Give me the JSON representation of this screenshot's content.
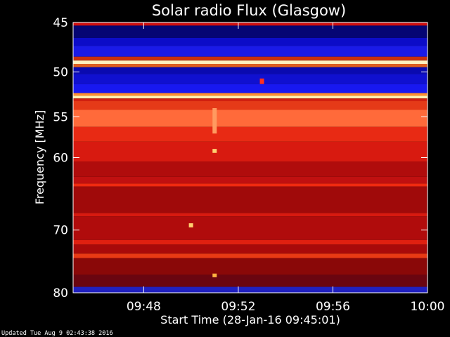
{
  "chart_data": {
    "type": "heatmap",
    "title": "Solar radio Flux (Glasgow)",
    "xlabel": "Start Time (28-Jan-16 09:45:01)",
    "ylabel": "Frequency [MHz]",
    "x_ticks": [
      "09:48",
      "09:52",
      "09:56",
      "10:00"
    ],
    "y_ticks": [
      "45",
      "50",
      "55",
      "60",
      "70",
      "80"
    ],
    "xlim": [
      "09:45:01",
      "10:00:00"
    ],
    "ylim_mhz": [
      45,
      80
    ],
    "y_scale": "log",
    "colormap": "blue-black-red-yellow-white",
    "bands": [
      {
        "from": 45.0,
        "to": 45.3,
        "color": "#d01010"
      },
      {
        "from": 45.3,
        "to": 46.5,
        "color": "#050573"
      },
      {
        "from": 46.5,
        "to": 47.3,
        "color": "#0c0cc8"
      },
      {
        "from": 47.3,
        "to": 48.4,
        "color": "#1a1ae8"
      },
      {
        "from": 48.4,
        "to": 48.8,
        "color": "#c83010"
      },
      {
        "from": 48.8,
        "to": 49.15,
        "color": "#fff2c0"
      },
      {
        "from": 49.15,
        "to": 49.5,
        "color": "#e06020"
      },
      {
        "from": 49.5,
        "to": 50.2,
        "color": "#0a0ab0"
      },
      {
        "from": 50.2,
        "to": 51.3,
        "color": "#1010d0"
      },
      {
        "from": 51.3,
        "to": 52.3,
        "color": "#1818f0"
      },
      {
        "from": 52.3,
        "to": 52.6,
        "color": "#ff9030"
      },
      {
        "from": 52.6,
        "to": 52.9,
        "color": "#fff0b0"
      },
      {
        "from": 52.9,
        "to": 53.2,
        "color": "#d02010"
      },
      {
        "from": 53.2,
        "to": 54.2,
        "color": "#e53a18"
      },
      {
        "from": 54.2,
        "to": 56.2,
        "color": "#ff6a3a"
      },
      {
        "from": 56.2,
        "to": 58.0,
        "color": "#e82a14"
      },
      {
        "from": 58.0,
        "to": 60.5,
        "color": "#d81a10"
      },
      {
        "from": 60.5,
        "to": 62.5,
        "color": "#b00c0c"
      },
      {
        "from": 62.5,
        "to": 63.4,
        "color": "#c01010"
      },
      {
        "from": 63.4,
        "to": 63.8,
        "color": "#f02a10"
      },
      {
        "from": 63.8,
        "to": 67.5,
        "color": "#a00a0a"
      },
      {
        "from": 67.5,
        "to": 68.0,
        "color": "#d81a10"
      },
      {
        "from": 68.0,
        "to": 71.5,
        "color": "#b00c0c"
      },
      {
        "from": 71.5,
        "to": 72.2,
        "color": "#e02010"
      },
      {
        "from": 72.2,
        "to": 73.6,
        "color": "#a80a0a"
      },
      {
        "from": 73.6,
        "to": 74.3,
        "color": "#e83a14"
      },
      {
        "from": 74.3,
        "to": 77.0,
        "color": "#8a0808"
      },
      {
        "from": 77.0,
        "to": 79.0,
        "color": "#6a0510"
      },
      {
        "from": 79.0,
        "to": 80.0,
        "color": "#2020c0"
      }
    ],
    "bursts": [
      {
        "time": "09:53",
        "freq_from": 50.7,
        "freq_to": 51.3,
        "color": "#ff3020"
      },
      {
        "time": "09:51",
        "freq_from": 58.9,
        "freq_to": 59.4,
        "color": "#ffd070"
      },
      {
        "time": "09:51",
        "freq_from": 54.0,
        "freq_to": 57.0,
        "color": "#ff9a60"
      },
      {
        "time": "09:50",
        "freq_from": 69.0,
        "freq_to": 69.6,
        "color": "#ffd070"
      },
      {
        "time": "09:51",
        "freq_from": 76.8,
        "freq_to": 77.4,
        "color": "#ffb040"
      }
    ]
  },
  "footer": {
    "updated": "Updated Tue Aug  9 02:43:38 2016"
  }
}
